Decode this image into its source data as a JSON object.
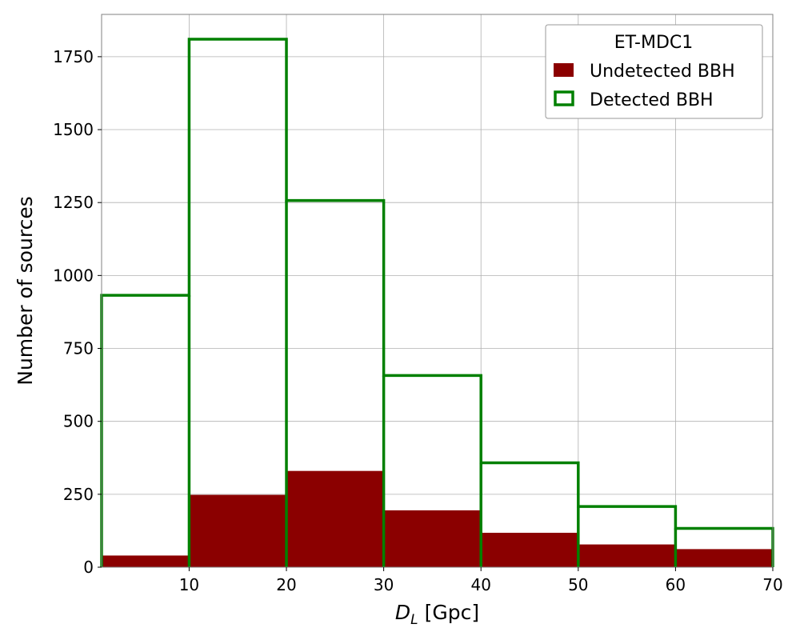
{
  "chart_data": {
    "type": "bar",
    "x_bin_edges": [
      1,
      10,
      20,
      30,
      40,
      50,
      60,
      70
    ],
    "series": [
      {
        "name": "Undetected BBH",
        "style": "filled",
        "color": "#8b0000",
        "values": [
          40,
          248,
          330,
          195,
          118,
          78,
          62
        ]
      },
      {
        "name": "Detected BBH",
        "style": "step-outline",
        "color": "#008000",
        "values": [
          932,
          1810,
          1257,
          657,
          358,
          208,
          133
        ]
      }
    ],
    "xlim": [
      1,
      70
    ],
    "ylim": [
      0,
      1895
    ],
    "xticks": [
      10,
      20,
      30,
      40,
      50,
      60,
      70
    ],
    "yticks": [
      0,
      250,
      500,
      750,
      1000,
      1250,
      1500,
      1750
    ],
    "xlabel_main": "D",
    "xlabel_sub": "L",
    "xlabel_unit": " [Gpc]",
    "ylabel": "Number of sources",
    "legend": {
      "title": "ET-MDC1",
      "placement": "top-right"
    },
    "grid": true
  }
}
